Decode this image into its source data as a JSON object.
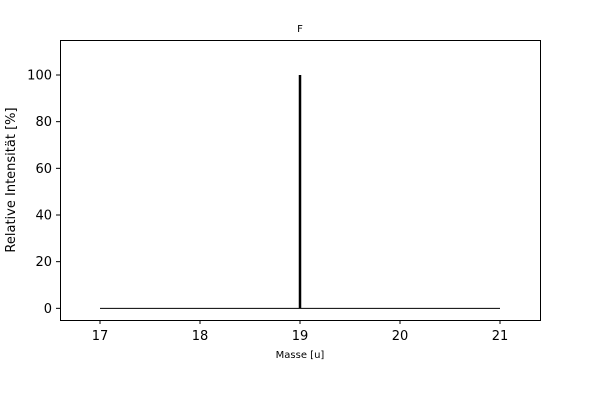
{
  "chart_data": {
    "type": "bar",
    "title": "F",
    "xlabel": "Masse [u]",
    "ylabel": "Relative Intensität [%]",
    "xlim": [
      16.6,
      21.4
    ],
    "ylim": [
      -5,
      115
    ],
    "xticks": [
      17,
      18,
      19,
      20,
      21
    ],
    "yticks": [
      0,
      20,
      40,
      60,
      80,
      100
    ],
    "baseline": {
      "x": [
        17,
        21
      ],
      "y": 0
    },
    "peaks": [
      {
        "x": 19,
        "y": 100
      }
    ],
    "grid": false,
    "colors": {
      "line": "#000000"
    }
  }
}
